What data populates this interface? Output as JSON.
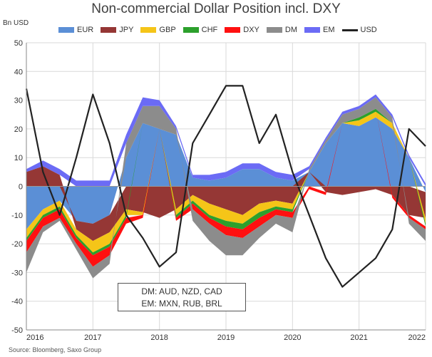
{
  "chart_data": {
    "type": "area",
    "title": "Non-commercial Dollar Position incl. DXY",
    "ylabel": "Bn USD",
    "ylim": [
      -50,
      50
    ],
    "yticks": [
      -50,
      -40,
      -30,
      -20,
      -10,
      0,
      10,
      20,
      30,
      40,
      50
    ],
    "xticks": [
      "2016",
      "2017",
      "2018",
      "2019",
      "2020",
      "2021",
      "2022"
    ],
    "xlim": [
      2016,
      2022
    ],
    "grid": true,
    "legend_position": "top",
    "source": "Source: Bloomberg, Saxo Group",
    "annotation": [
      "DM: AUD, NZD, CAD",
      "EM: MXN, RUB, BRL"
    ],
    "x": [
      2016.0,
      2016.25,
      2016.5,
      2016.75,
      2017.0,
      2017.25,
      2017.5,
      2017.75,
      2018.0,
      2018.25,
      2018.5,
      2018.75,
      2019.0,
      2019.25,
      2019.5,
      2019.75,
      2020.0,
      2020.25,
      2020.5,
      2020.75,
      2021.0,
      2021.25,
      2021.5,
      2021.75,
      2022.0
    ],
    "series": [
      {
        "name": "EUR",
        "color": "#5b8fd6",
        "values": [
          -15,
          -8,
          -5,
          -12,
          -13,
          -10,
          10,
          22,
          20,
          18,
          3,
          2,
          3,
          6,
          6,
          3,
          2,
          5,
          15,
          22,
          21,
          24,
          20,
          10,
          -2
        ]
      },
      {
        "name": "JPY",
        "color": "#953735",
        "values": [
          5,
          7,
          4,
          -3,
          -6,
          -6,
          -8,
          -9,
          -11,
          -8,
          -3,
          -6,
          -8,
          -10,
          -6,
          -5,
          -6,
          0,
          -2,
          -3,
          -2,
          -1,
          -3,
          -10,
          -9
        ]
      },
      {
        "name": "GBP",
        "color": "#f5c518",
        "values": [
          -3,
          -2,
          -2,
          -2,
          -4,
          -4,
          -2,
          -1,
          0,
          -2,
          -2,
          -4,
          -4,
          -3,
          -3,
          -2,
          -2,
          0,
          0,
          0,
          2,
          2,
          2,
          0,
          -2
        ]
      },
      {
        "name": "CHF",
        "color": "#2ca02c",
        "values": [
          -1,
          -1,
          -1,
          -1,
          -1,
          -1,
          -1,
          0,
          0,
          -1,
          -1,
          -1,
          -2,
          -2,
          -2,
          -1,
          -1,
          0,
          0,
          0,
          1,
          1,
          0,
          0,
          -1
        ]
      },
      {
        "name": "DXY",
        "color": "#ff1010",
        "values": [
          -4,
          -3,
          -3,
          -2,
          -4,
          -3,
          -2,
          -1,
          0,
          -1,
          -2,
          -2,
          -3,
          -3,
          -3,
          -2,
          -2,
          -1,
          -1,
          0,
          0,
          0,
          -1,
          -1,
          -1
        ]
      },
      {
        "name": "DM",
        "color": "#8c8c8c",
        "values": [
          -7,
          -2,
          -1,
          -2,
          -4,
          -3,
          5,
          6,
          8,
          2,
          -4,
          -6,
          -7,
          -6,
          -4,
          -3,
          -5,
          1,
          1,
          3,
          3,
          4,
          2,
          -2,
          -4
        ]
      },
      {
        "name": "EM",
        "color": "#6b6bf5",
        "values": [
          1,
          2,
          2,
          2,
          2,
          2,
          3,
          3,
          2,
          1,
          1,
          2,
          2,
          2,
          2,
          2,
          2,
          1,
          1,
          1,
          1,
          1,
          1,
          1,
          1
        ]
      },
      {
        "name": "USD",
        "color": "#222222",
        "values": [
          34,
          5,
          -10,
          10,
          32,
          15,
          -10,
          -18,
          -28,
          -23,
          15,
          25,
          35,
          35,
          15,
          25,
          5,
          -10,
          -25,
          -35,
          -30,
          -25,
          -15,
          20,
          14
        ]
      }
    ]
  }
}
